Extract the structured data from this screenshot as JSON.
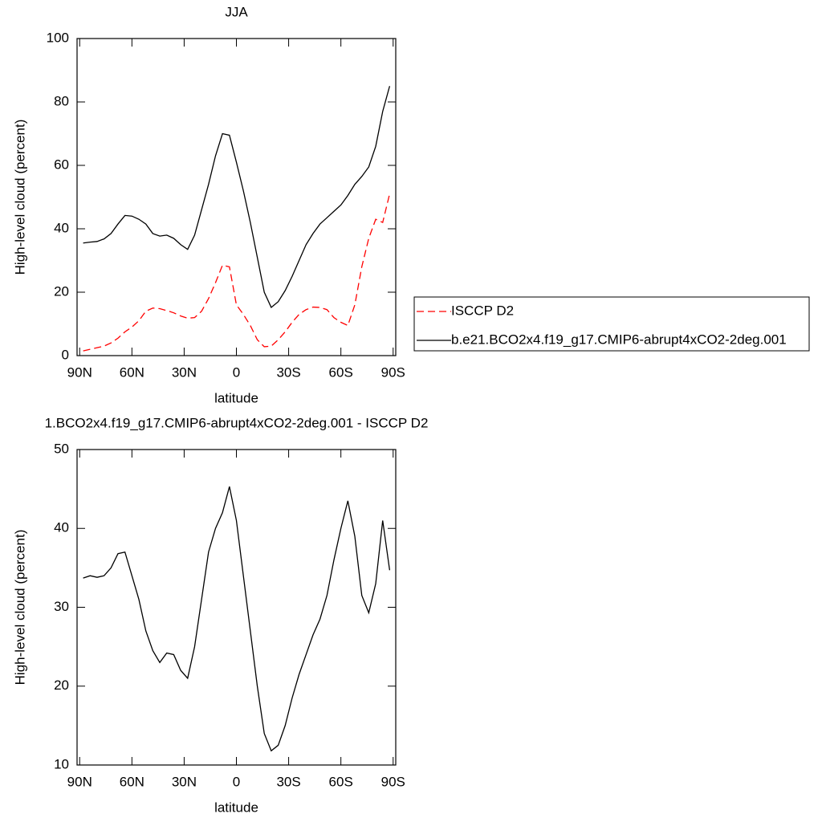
{
  "chart_data": [
    {
      "type": "line",
      "title": "JJA",
      "xlabel": "latitude",
      "ylabel": "High-level cloud (percent)",
      "x": [
        88,
        84,
        80,
        76,
        72,
        68,
        64,
        60,
        56,
        52,
        48,
        44,
        40,
        36,
        32,
        28,
        24,
        20,
        16,
        12,
        8,
        4,
        0,
        -4,
        -8,
        -12,
        -16,
        -20,
        -24,
        -28,
        -32,
        -36,
        -40,
        -44,
        -48,
        -52,
        -56,
        -60,
        -64,
        -68,
        -72,
        -76,
        -80,
        -84,
        -88
      ],
      "xlim": [
        91.5,
        -91.5
      ],
      "xticks": [
        {
          "value": 90,
          "label": "90N"
        },
        {
          "value": 60,
          "label": "60N"
        },
        {
          "value": 30,
          "label": "30N"
        },
        0,
        {
          "value": -30,
          "label": "30S"
        },
        {
          "value": -60,
          "label": "60S"
        },
        {
          "value": -90,
          "label": "90S"
        }
      ],
      "ylim": [
        0,
        100
      ],
      "yticks": [
        0,
        20,
        40,
        60,
        80,
        100
      ],
      "legend": "right",
      "series": [
        {
          "name": "ISCCP D2",
          "color": "#ff0000",
          "dash": true,
          "values": [
            1.5,
            2,
            2.5,
            3,
            4,
            5.5,
            7.5,
            9,
            11,
            14,
            15,
            14.8,
            14.2,
            13.5,
            12.5,
            11.8,
            12,
            14,
            18,
            23,
            28.5,
            28,
            16,
            13,
            9.5,
            5,
            2.8,
            3,
            5,
            7.5,
            10.5,
            13,
            14.5,
            15.3,
            15.2,
            14.5,
            12,
            10.5,
            9.5,
            16,
            28,
            37,
            43,
            42,
            51
          ]
        },
        {
          "name": "b.e21.BCO2x4.f19_g17.CMIP6-abrupt4xCO2-2deg.001",
          "color": "#000000",
          "dash": false,
          "values": [
            35.5,
            35.8,
            36,
            36.8,
            38.5,
            41.5,
            44.2,
            44,
            43,
            41.5,
            38.5,
            37.7,
            38,
            37,
            35,
            33.5,
            38,
            46,
            54,
            63,
            70,
            69.5,
            61,
            52,
            42,
            31,
            20,
            15.2,
            17,
            20.5,
            25,
            30,
            35,
            38.5,
            41.5,
            43.5,
            45.5,
            47.5,
            50.5,
            54,
            56.5,
            59.5,
            66,
            77,
            85
          ]
        }
      ]
    },
    {
      "type": "line",
      "title": "1.BCO2x4.f19_g17.CMIP6-abrupt4xCO2-2deg.001 - ISCCP D2",
      "xlabel": "latitude",
      "ylabel": "High-level cloud (percent)",
      "x": [
        88,
        84,
        80,
        76,
        72,
        68,
        64,
        60,
        56,
        52,
        48,
        44,
        40,
        36,
        32,
        28,
        24,
        20,
        16,
        12,
        8,
        4,
        0,
        -4,
        -8,
        -12,
        -16,
        -20,
        -24,
        -28,
        -32,
        -36,
        -40,
        -44,
        -48,
        -52,
        -56,
        -60,
        -64,
        -68,
        -72,
        -76,
        -80,
        -84,
        -88
      ],
      "xlim": [
        91.5,
        -91.5
      ],
      "xticks": [
        {
          "value": 90,
          "label": "90N"
        },
        {
          "value": 60,
          "label": "60N"
        },
        {
          "value": 30,
          "label": "30N"
        },
        0,
        {
          "value": -30,
          "label": "30S"
        },
        {
          "value": -60,
          "label": "60S"
        },
        {
          "value": -90,
          "label": "90S"
        }
      ],
      "ylim": [
        10,
        50
      ],
      "yticks": [
        10,
        20,
        30,
        40,
        50
      ],
      "series": [
        {
          "color": "#000000",
          "dash": false,
          "values": [
            33.7,
            34,
            33.8,
            34,
            35,
            36.8,
            37,
            34,
            31,
            27,
            24.5,
            23,
            24.2,
            24,
            22,
            21,
            25,
            31,
            37,
            40,
            42,
            45.3,
            41,
            34,
            27,
            20,
            14,
            11.8,
            12.5,
            15,
            18.5,
            21.5,
            24,
            26.5,
            28.5,
            31.5,
            36,
            40,
            43.5,
            39,
            31.5,
            29.3,
            33,
            41,
            34.7
          ]
        }
      ]
    }
  ]
}
